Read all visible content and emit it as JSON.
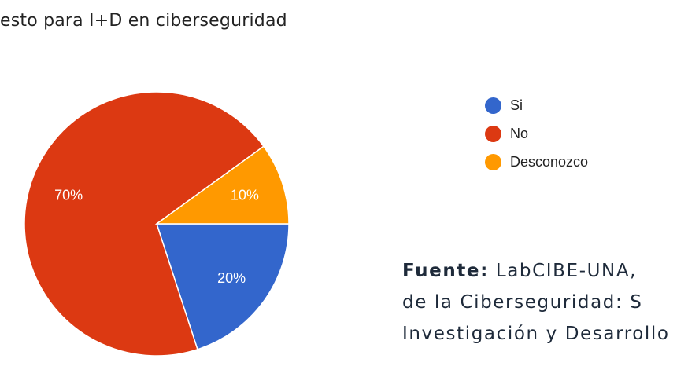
{
  "chart_data": {
    "type": "pie",
    "title": "esto para I+D en ciberseguridad",
    "categories": [
      "Si",
      "No",
      "Desconozco"
    ],
    "values": [
      20,
      70,
      10
    ],
    "labels": [
      "20%",
      "70%",
      "10%"
    ],
    "colors": [
      "#3366cc",
      "#dc3912",
      "#ff9900"
    ],
    "start_angle_deg": 90,
    "legend_position": "right"
  },
  "source": {
    "label": "Fuente:",
    "lines": [
      "LabCIBE-UNA,",
      "de la Ciberseguridad: S",
      "Investigación y Desarrollo"
    ]
  }
}
